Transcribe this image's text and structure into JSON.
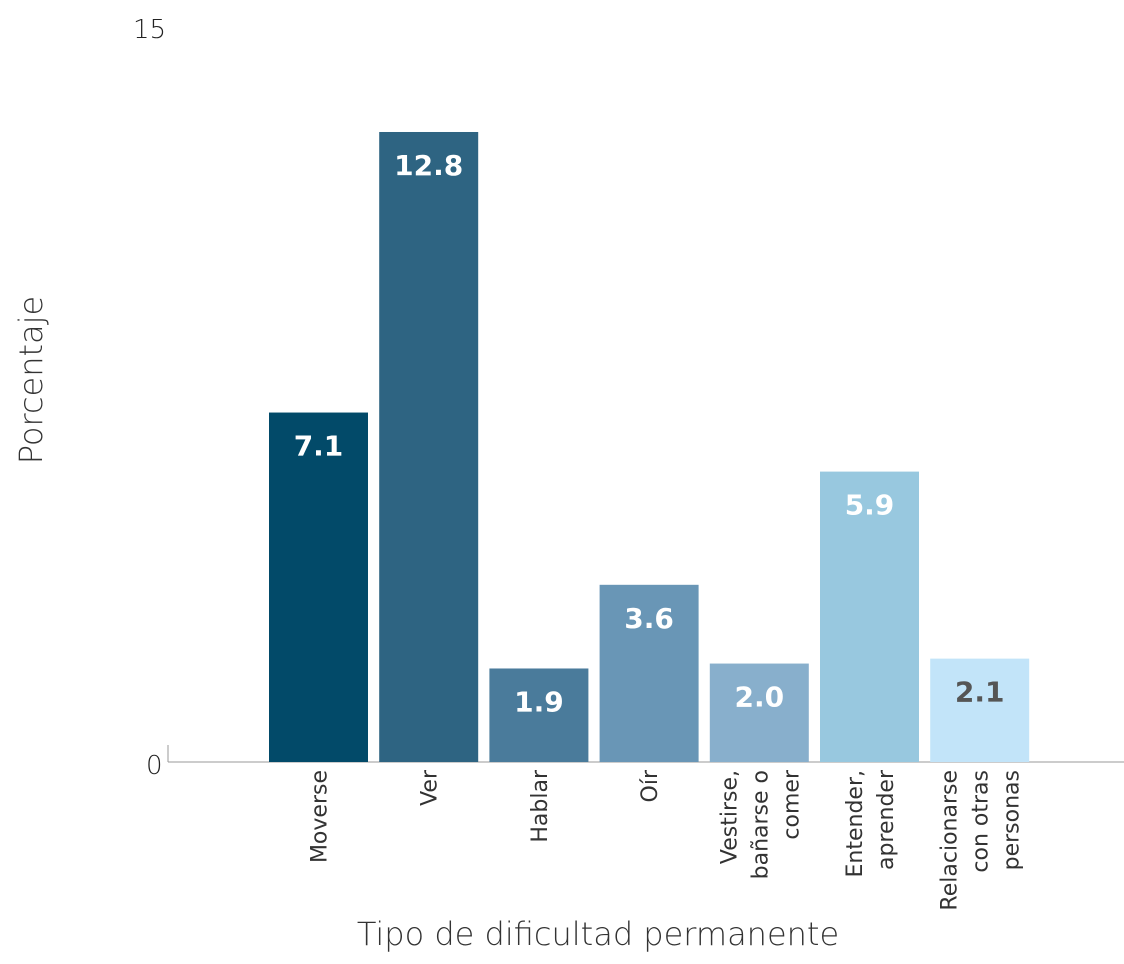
{
  "chart_data": {
    "type": "bar",
    "xlabel": "Tipo de dificultad permanente",
    "ylabel": "Porcentaje",
    "ylim": [
      0,
      15
    ],
    "yticks": [
      "0",
      "15"
    ],
    "categories": [
      [
        "Moverse"
      ],
      [
        "Ver"
      ],
      [
        "Hablar"
      ],
      [
        "Oír"
      ],
      [
        "Vestirse,",
        "bañarse o",
        "comer"
      ],
      [
        "Entender,",
        "aprender"
      ],
      [
        "Relacionarse",
        "con otras",
        "personas"
      ]
    ],
    "values": [
      7.1,
      12.8,
      1.9,
      3.6,
      2.0,
      5.9,
      2.1
    ],
    "value_labels": [
      "7.1",
      "12.8",
      "1.9",
      "3.6",
      "2.0",
      "5.9",
      "2.1"
    ],
    "colors": [
      "#024a69",
      "#2e6482",
      "#4a7b9b",
      "#6996b6",
      "#88afcc",
      "#98c8df",
      "#c2e4f9"
    ],
    "label_colors": [
      "#ffffff",
      "#ffffff",
      "#ffffff",
      "#ffffff",
      "#ffffff",
      "#ffffff",
      "#555555"
    ],
    "grid": false
  }
}
